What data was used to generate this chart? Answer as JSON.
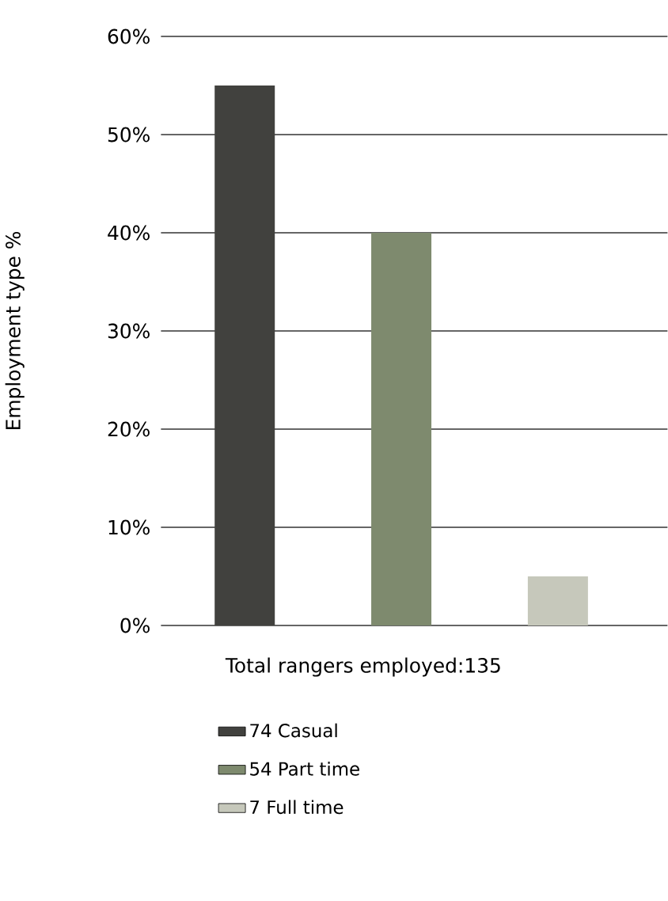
{
  "chart_data": {
    "type": "bar",
    "categories": [
      null,
      null,
      null
    ],
    "series": [
      {
        "name": "74 Casual",
        "color": "#41413e",
        "values": [
          55,
          null,
          null
        ]
      },
      {
        "name": "54 Part time",
        "color": "#7e8a6e",
        "values": [
          null,
          40,
          null
        ]
      },
      {
        "name": "7 Full time",
        "color": "#c6c8bb",
        "values": [
          null,
          null,
          5
        ]
      }
    ],
    "xlabel": "Total rangers employed:135",
    "ylabel": "Employment type %",
    "ylim": [
      0,
      60
    ],
    "yticks": [
      {
        "value": 0,
        "label": "0%"
      },
      {
        "value": 10,
        "label": "10%"
      },
      {
        "value": 20,
        "label": "20%"
      },
      {
        "value": 30,
        "label": "30%"
      },
      {
        "value": 40,
        "label": "40%"
      },
      {
        "value": 50,
        "label": "50%"
      },
      {
        "value": 60,
        "label": "60%"
      }
    ],
    "grid": "y",
    "legend": "bottom"
  }
}
